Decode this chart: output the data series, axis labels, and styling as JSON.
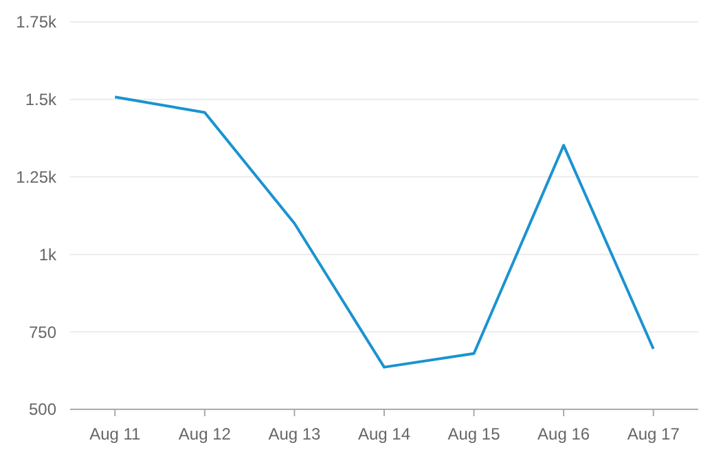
{
  "chart_data": {
    "type": "line",
    "categories": [
      "Aug 11",
      "Aug 12",
      "Aug 13",
      "Aug 14",
      "Aug 15",
      "Aug 16",
      "Aug 17"
    ],
    "series": [
      {
        "color": "#1a93d0",
        "values": [
          1508,
          1458,
          1100,
          636,
          680,
          1352,
          695
        ]
      }
    ],
    "ylim": [
      500,
      1750
    ],
    "yticks": [
      500,
      750,
      {
        "value": 1000,
        "label": "1k"
      },
      {
        "value": 1250,
        "label": "1.25k"
      },
      {
        "value": 1500,
        "label": "1.5k"
      },
      {
        "value": 1750,
        "label": "1.75k"
      }
    ],
    "grid": "y",
    "marker": "none",
    "line_style": "solid"
  }
}
